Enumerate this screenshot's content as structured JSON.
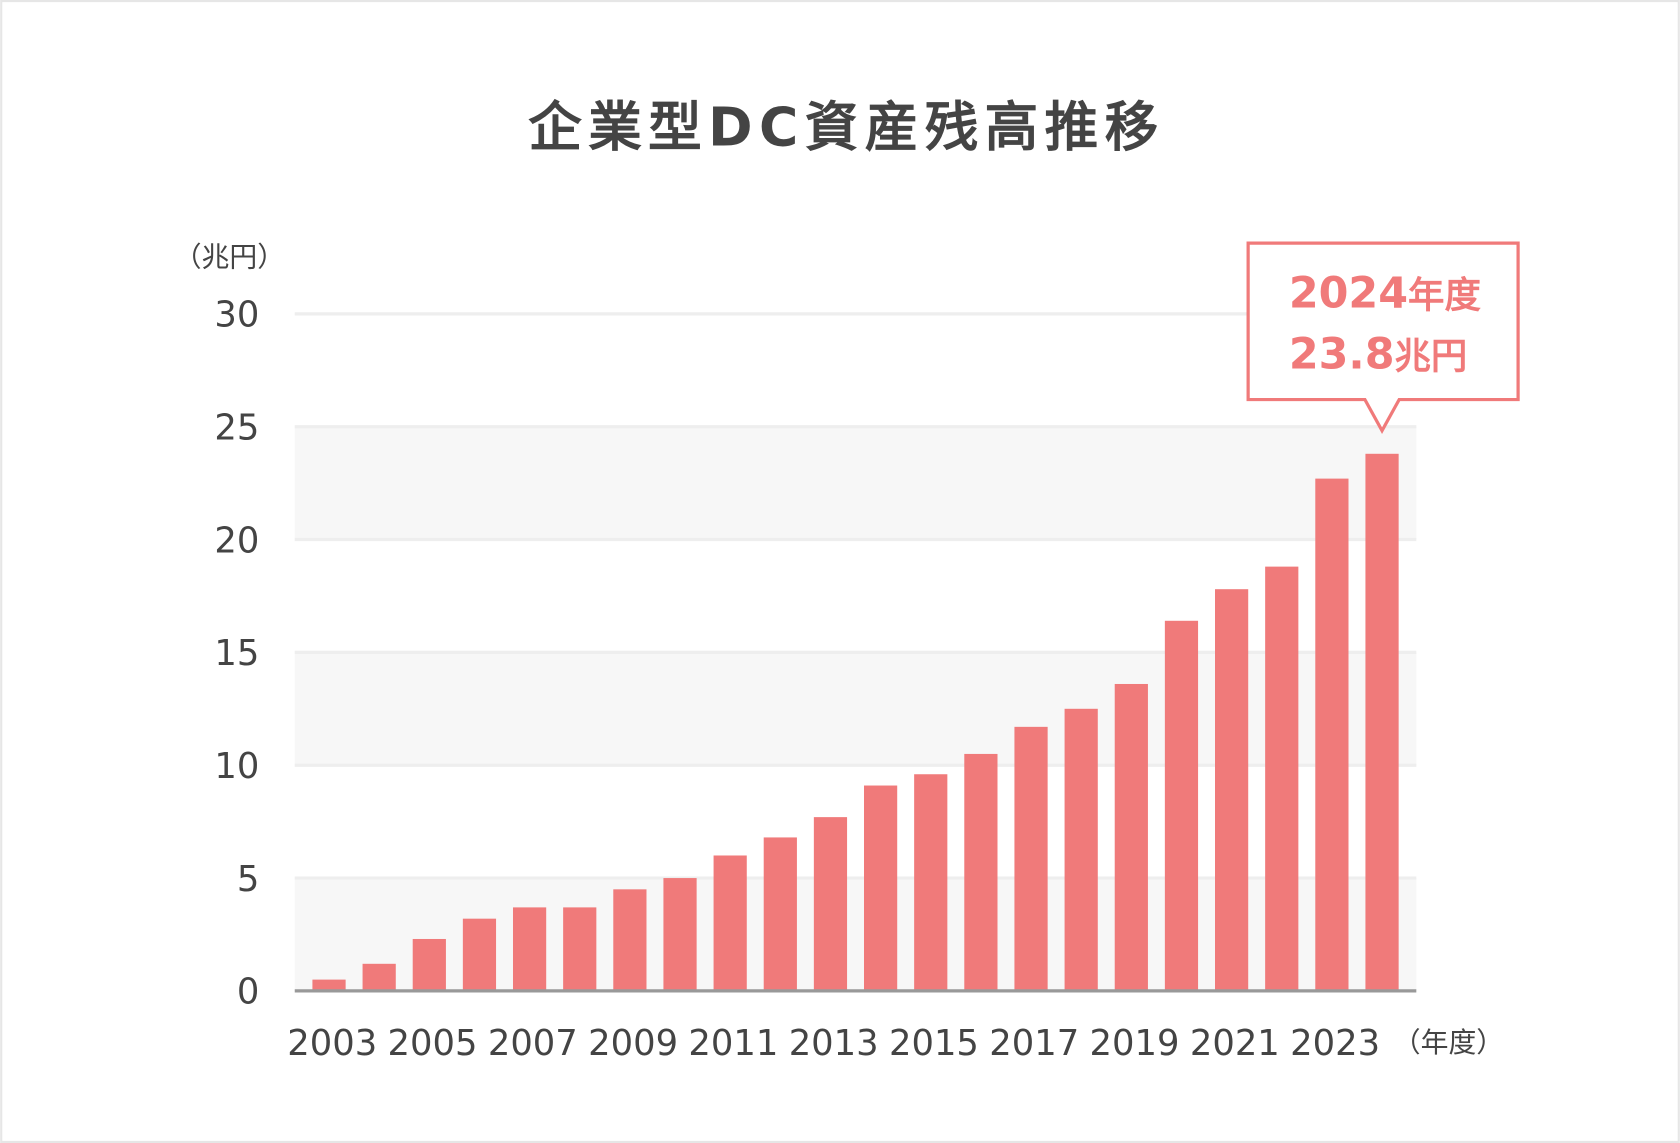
{
  "chart_data": {
    "type": "bar",
    "title": "企業型DC資産残高推移",
    "ylabel": "（兆円）",
    "xlabel": "（年度）",
    "ylim": [
      0,
      30
    ],
    "yticks": [
      "0",
      "5",
      "10",
      "15",
      "20",
      "25",
      "30"
    ],
    "grid": true,
    "categories": [
      "2003",
      "2004",
      "2005",
      "2006",
      "2007",
      "2008",
      "2009",
      "2010",
      "2011",
      "2012",
      "2013",
      "2014",
      "2015",
      "2016",
      "2017",
      "2018",
      "2019",
      "2020",
      "2021",
      "2022",
      "2023",
      "2024"
    ],
    "xtick_labels": [
      "2003",
      "2005",
      "2007",
      "2009",
      "2011",
      "2013",
      "2015",
      "2017",
      "2019",
      "2021",
      "2023"
    ],
    "values": [
      0.5,
      1.2,
      2.3,
      3.2,
      3.7,
      3.7,
      4.5,
      5.0,
      6.0,
      6.8,
      7.7,
      9.1,
      9.6,
      10.5,
      11.7,
      12.5,
      13.6,
      16.4,
      17.8,
      18.8,
      22.7,
      23.8
    ],
    "bar_color": "#f07a7a",
    "annotation": {
      "line1_num": "2024",
      "line1_unit": "年度",
      "line2_num": "23.8",
      "line2_unit": "兆円",
      "target": "2024"
    }
  }
}
